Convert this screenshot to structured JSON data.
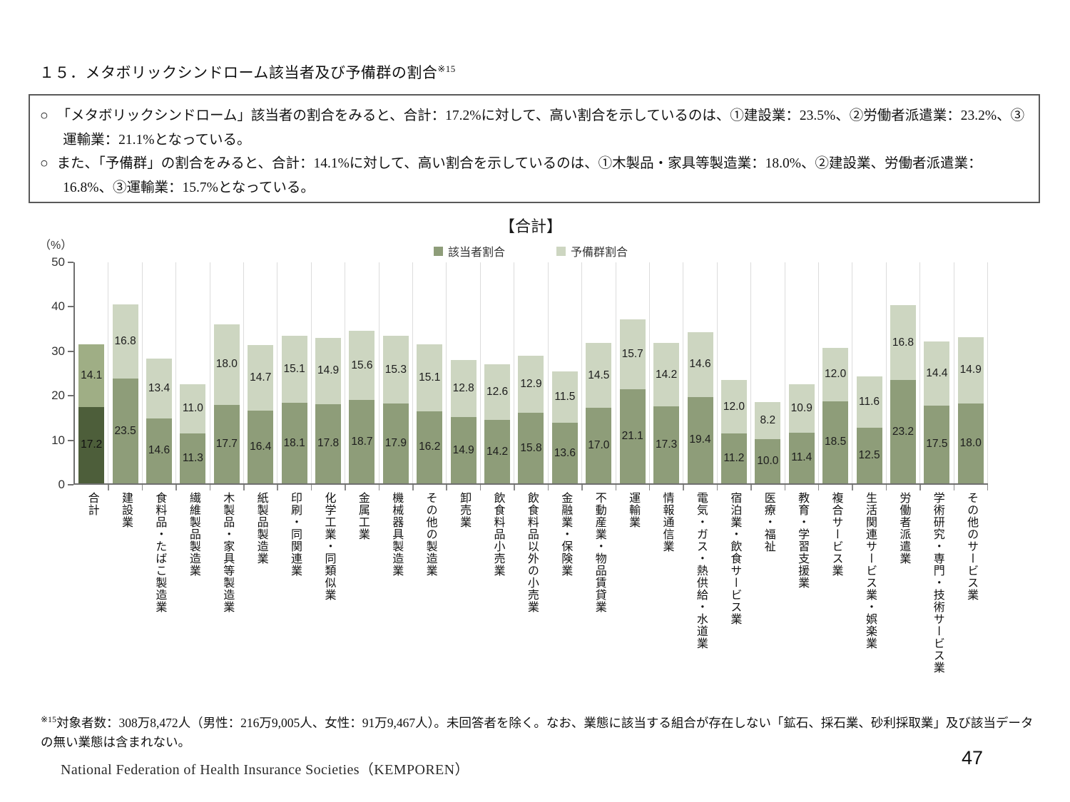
{
  "page": {
    "title": "１５．メタボリックシンドローム該当者及び予備群の割合",
    "title_sup": "※15",
    "bullet_marker": "○",
    "summary_bullets": [
      "「メタボリックシンドローム」該当者の割合をみると、合計：17.2%に対して、高い割合を示しているのは、①建設業：23.5%、②労働者派遣業：23.2%、③運輸業：21.1%となっている。",
      "また、「予備群」の割合をみると、合計：14.1%に対して、高い割合を示しているのは、①木製品・家具等製造業：18.0%、②建設業、労働者派遣業：16.8%、③運輸業：15.7%となっている。"
    ],
    "footnote_sup": "※15",
    "footnote": "対象者数：308万8,472人（男性：216万9,005人、女性：91万9,467人）。未回答者を除く。なお、業態に該当する組合が存在しない「鉱石、採石業、砂利採取業」及び該当データの無い業態は含まれない。",
    "footer": "National Federation of Health Insurance Societies（KEMPOREN）",
    "page_number": "47"
  },
  "chart_data": {
    "type": "bar",
    "stacked": true,
    "title": "【合計】",
    "unit_label": "（%）",
    "ylim": [
      0,
      50
    ],
    "yticks": [
      0,
      10,
      20,
      30,
      40,
      50
    ],
    "grid": "vertical-separators-only",
    "legend_position": "top-center",
    "categories": [
      "合計",
      "建設業",
      "食料品・たばこ製造業",
      "繊維製品製造業",
      "木製品・家具等製造業",
      "紙製品製造業",
      "印刷・同関連業",
      "化学工業・同類似業",
      "金属工業",
      "機械器具製造業",
      "その他の製造業",
      "卸売業",
      "飲食料品小売業",
      "飲食料品以外の小売業",
      "金融業・保険業",
      "不動産業・物品賃貸業",
      "運輸業",
      "情報通信業",
      "電気・ガス・熱供給・水道業",
      "宿泊業・飲食サービス業",
      "医療・福祉",
      "教育・学習支援業",
      "複合サービス業",
      "生活関連サービス業・娯楽業",
      "労働者派遣業",
      "学術研究・専門・技術サービス業",
      "その他のサービス業"
    ],
    "series": [
      {
        "name": "該当者割合",
        "values": [
          17.2,
          23.5,
          14.6,
          11.3,
          17.7,
          16.4,
          18.1,
          17.8,
          18.7,
          17.9,
          16.2,
          14.9,
          14.2,
          15.8,
          13.6,
          17.0,
          21.1,
          17.3,
          19.4,
          11.2,
          10.0,
          11.4,
          18.5,
          12.5,
          23.2,
          17.5,
          18.0
        ]
      },
      {
        "name": "予備群割合",
        "values": [
          14.1,
          16.8,
          13.4,
          11.0,
          18.0,
          14.7,
          15.1,
          14.9,
          15.6,
          15.3,
          15.1,
          12.8,
          12.6,
          12.9,
          11.5,
          14.5,
          15.7,
          14.2,
          14.6,
          12.0,
          8.2,
          10.9,
          12.0,
          11.6,
          16.8,
          14.4,
          14.9
        ]
      }
    ],
    "colors": {
      "main": "#8e9d79",
      "sub": "#cdd6c1",
      "total_main": "#4d5e3a",
      "total_sub": "#9fae85",
      "separator": "#dcdcdc",
      "axis": "#6f6f6f",
      "value_label": "#1c1c1c"
    }
  }
}
